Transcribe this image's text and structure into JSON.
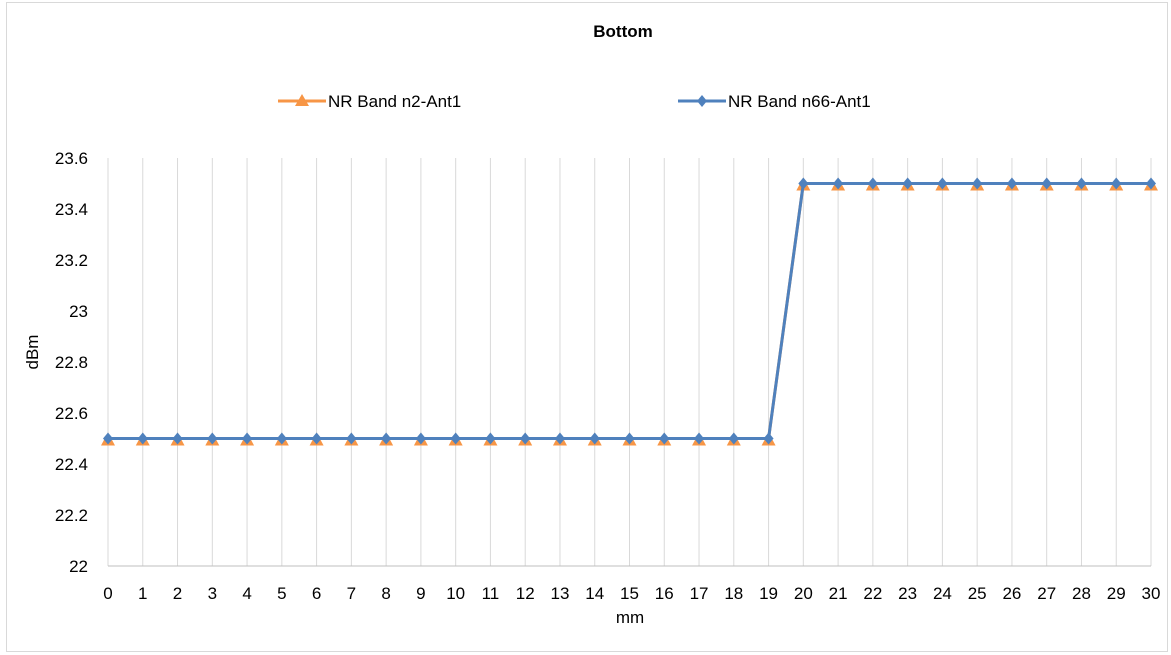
{
  "chart_data": {
    "type": "line",
    "title": "Bottom",
    "xlabel": "mm",
    "ylabel": "dBm",
    "x": [
      0,
      1,
      2,
      3,
      4,
      5,
      6,
      7,
      8,
      9,
      10,
      11,
      12,
      13,
      14,
      15,
      16,
      17,
      18,
      19,
      20,
      21,
      22,
      23,
      24,
      25,
      26,
      27,
      28,
      29,
      30
    ],
    "xticks": [
      "0",
      "1",
      "2",
      "3",
      "4",
      "5",
      "6",
      "7",
      "8",
      "9",
      "10",
      "11",
      "12",
      "13",
      "14",
      "15",
      "16",
      "17",
      "18",
      "19",
      "20",
      "21",
      "22",
      "23",
      "24",
      "25",
      "26",
      "27",
      "28",
      "29",
      "30"
    ],
    "ylim": [
      22,
      23.6
    ],
    "yticks": [
      "22",
      "22.2",
      "22.4",
      "22.6",
      "22.8",
      "23",
      "23.2",
      "23.4",
      "23.6"
    ],
    "grid": "vertical",
    "legend_position": "top",
    "series": [
      {
        "name": "NR Band n2-Ant1",
        "color": "#f79646",
        "marker": "triangle",
        "values": [
          22.5,
          22.5,
          22.5,
          22.5,
          22.5,
          22.5,
          22.5,
          22.5,
          22.5,
          22.5,
          22.5,
          22.5,
          22.5,
          22.5,
          22.5,
          22.5,
          22.5,
          22.5,
          22.5,
          22.5,
          23.5,
          23.5,
          23.5,
          23.5,
          23.5,
          23.5,
          23.5,
          23.5,
          23.5,
          23.5,
          23.5
        ]
      },
      {
        "name": "NR Band n66-Ant1",
        "color": "#4f81bd",
        "marker": "diamond",
        "values": [
          22.5,
          22.5,
          22.5,
          22.5,
          22.5,
          22.5,
          22.5,
          22.5,
          22.5,
          22.5,
          22.5,
          22.5,
          22.5,
          22.5,
          22.5,
          22.5,
          22.5,
          22.5,
          22.5,
          22.5,
          23.5,
          23.5,
          23.5,
          23.5,
          23.5,
          23.5,
          23.5,
          23.5,
          23.5,
          23.5,
          23.5
        ]
      }
    ]
  }
}
